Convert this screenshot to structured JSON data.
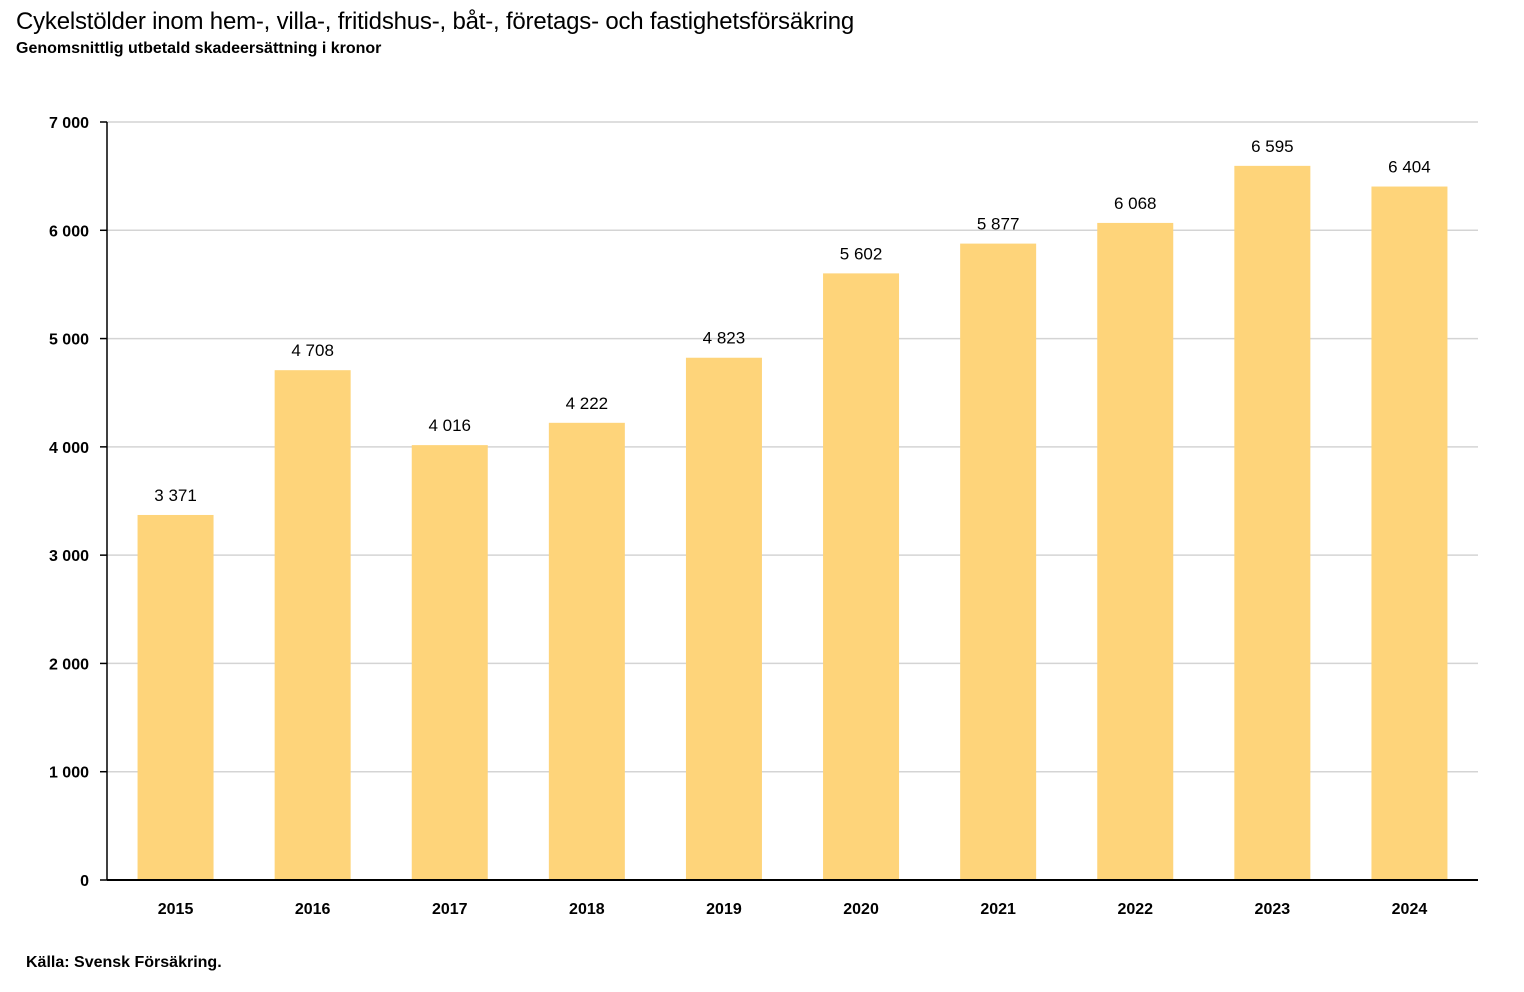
{
  "header": {
    "title": "Cykelstölder inom hem-, villa-, fritidshus-, båt-, företags- och fastighetsförsäkring",
    "subtitle": "Genomsnittlig utbetald skadeersättning i kronor"
  },
  "footer": {
    "source": "Källa: Svensk Försäkring."
  },
  "colors": {
    "bar": "#fed47a",
    "grid": "#d4d4d4",
    "axis": "#000000"
  },
  "chart_data": {
    "type": "bar",
    "title": "Cykelstölder inom hem-, villa-, fritidshus-, båt-, företags- och fastighetsförsäkring",
    "subtitle": "Genomsnittlig utbetald skadeersättning i kronor",
    "xlabel": "",
    "ylabel": "",
    "categories": [
      "2015",
      "2016",
      "2017",
      "2018",
      "2019",
      "2020",
      "2021",
      "2022",
      "2023",
      "2024"
    ],
    "values": [
      3371,
      4708,
      4016,
      4222,
      4823,
      5602,
      5877,
      6068,
      6595,
      6404
    ],
    "value_labels": [
      "3 371",
      "4 708",
      "4 016",
      "4 222",
      "4 823",
      "5 602",
      "5 877",
      "6 068",
      "6 595",
      "6 404"
    ],
    "ylim": [
      0,
      7000
    ],
    "yticks": [
      0,
      1000,
      2000,
      3000,
      4000,
      5000,
      6000,
      7000
    ],
    "ytick_labels": [
      "0",
      "1 000",
      "2 000",
      "3 000",
      "4 000",
      "5 000",
      "6 000",
      "7 000"
    ],
    "grid": true,
    "legend": "none"
  }
}
